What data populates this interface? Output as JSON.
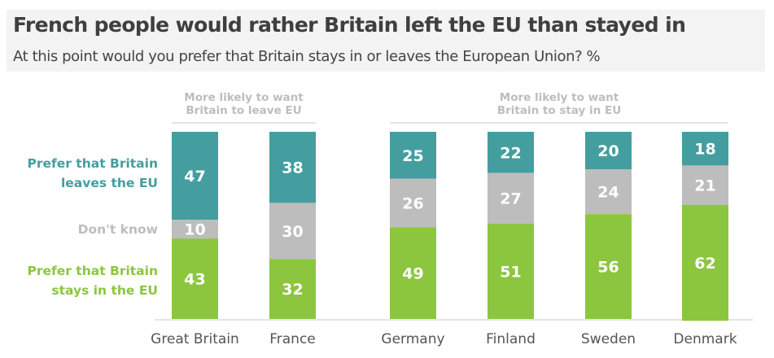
{
  "chart_data": {
    "type": "bar",
    "stacked": true,
    "title": "French people would rather Britain left the EU than stayed in",
    "subtitle": "At this point would you prefer that Britain stays in or leaves the European Union? %",
    "categories": [
      "Great Britain",
      "France",
      "Germany",
      "Finland",
      "Sweden",
      "Denmark"
    ],
    "series": [
      {
        "name": "Prefer that Britain leaves the EU",
        "color": "#449e9f",
        "values": [
          47,
          38,
          25,
          22,
          20,
          18
        ]
      },
      {
        "name": "Don't know",
        "color": "#bdbdbd",
        "values": [
          10,
          30,
          26,
          27,
          24,
          21
        ]
      },
      {
        "name": "Prefer that Britain stays in the EU",
        "color": "#8cc63f",
        "values": [
          43,
          32,
          49,
          51,
          56,
          62
        ]
      }
    ],
    "groups": [
      {
        "label": "More likely to want Britain to leave EU",
        "lines": [
          "More likely to want",
          "Britain to leave EU"
        ],
        "categories": [
          "Great Britain",
          "France"
        ]
      },
      {
        "label": "More likely to want Britain to stay in EU",
        "lines": [
          "More likely to want",
          "Britain to stay in EU"
        ],
        "categories": [
          "Germany",
          "Finland",
          "Sweden",
          "Denmark"
        ]
      }
    ],
    "legend_lines": [
      [
        "Prefer that Britain",
        "leaves the EU"
      ],
      [
        "Don't know"
      ],
      [
        "Prefer that Britain",
        "stays in the EU"
      ]
    ],
    "legend_placement": "left",
    "ylim": [
      0,
      100
    ],
    "grid": false
  }
}
